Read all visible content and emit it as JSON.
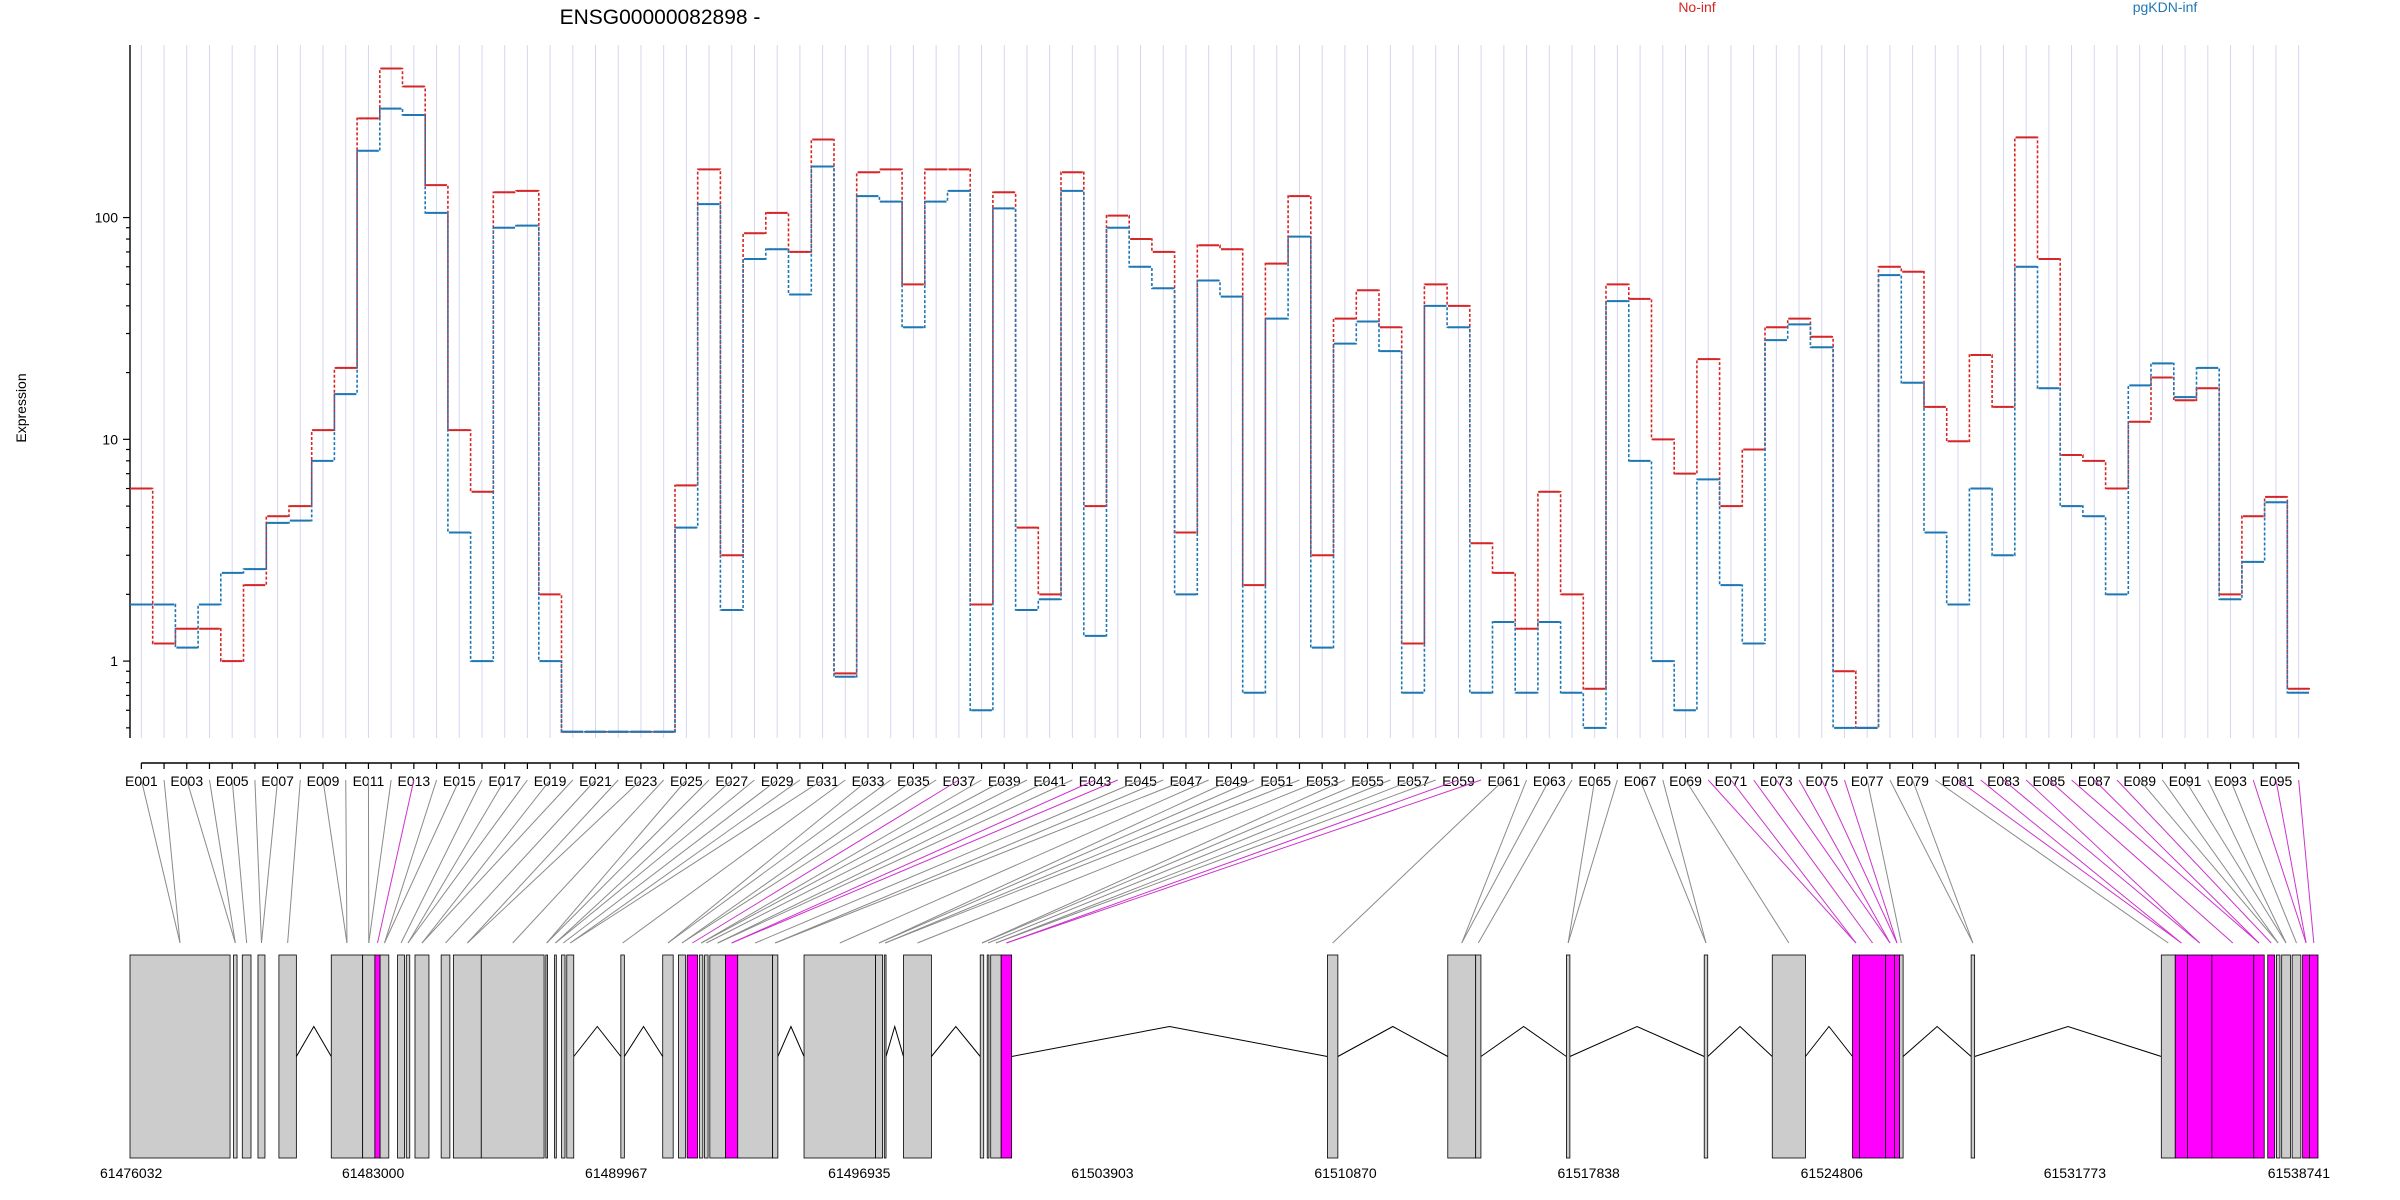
{
  "chart_data": {
    "type": "line",
    "title": "ENSG00000082898 -",
    "ylabel": "Expression",
    "yscale": "log",
    "ylim": [
      0.45,
      600
    ],
    "yticks": [
      "1",
      "10",
      "100"
    ],
    "grid": true,
    "legend_placement": "top-right",
    "colors": {
      "no_inf": "#d62728",
      "pgkdn_inf": "#1f77b4",
      "highlight": "#ff00ff",
      "exon": "#cccccc"
    },
    "x_labels_shown": [
      "E001",
      "E003",
      "E005",
      "E007",
      "E009",
      "E011",
      "E013",
      "E015",
      "E017",
      "E019",
      "E021",
      "E023",
      "E025",
      "E027",
      "E029",
      "E031",
      "E033",
      "E035",
      "E037",
      "E039",
      "E041",
      "E043",
      "E045",
      "E047",
      "E049",
      "E051",
      "E053",
      "E055",
      "E057",
      "E059",
      "E061",
      "E063",
      "E065",
      "E067",
      "E069",
      "E071",
      "E073",
      "E075",
      "E077",
      "E079",
      "E081",
      "E083",
      "E085",
      "E087",
      "E089",
      "E091",
      "E093",
      "E095"
    ],
    "series": [
      {
        "name": "No-inf",
        "color": "#d62728",
        "values": [
          6,
          1.2,
          1.4,
          1.4,
          1,
          2.2,
          4.5,
          5,
          11,
          21,
          280,
          470,
          390,
          140,
          11,
          5.8,
          130,
          132,
          2,
          0.48,
          0.48,
          0.48,
          0.48,
          0.48,
          6.2,
          165,
          3,
          85,
          105,
          70,
          225,
          0.88,
          160,
          165,
          50,
          165,
          165,
          1.8,
          130,
          4,
          2,
          160,
          5,
          102,
          80,
          70,
          3.8,
          75,
          72,
          2.2,
          62,
          125,
          3,
          35,
          47,
          32,
          1.2,
          50,
          40,
          3.4,
          2.5,
          1.4,
          5.8,
          2,
          0.75,
          50,
          43,
          10,
          7,
          23,
          5,
          9,
          32,
          35,
          29,
          0.9,
          0.5,
          60,
          57,
          14,
          9.8,
          24,
          14,
          230,
          65,
          8.5,
          8,
          6,
          12,
          19,
          15,
          17,
          2,
          4.5,
          5.5,
          0.75
        ]
      },
      {
        "name": "pgKDN-inf",
        "color": "#1f77b4",
        "values": [
          1.8,
          1.8,
          1.15,
          1.8,
          2.5,
          2.6,
          4.2,
          4.3,
          8,
          16,
          200,
          310,
          290,
          105,
          3.8,
          1,
          90,
          92,
          1,
          0.48,
          0.48,
          0.48,
          0.48,
          0.48,
          4,
          115,
          1.7,
          65,
          72,
          45,
          170,
          0.85,
          125,
          118,
          32,
          118,
          132,
          0.6,
          110,
          1.7,
          1.9,
          132,
          1.3,
          90,
          60,
          48,
          2,
          52,
          44,
          0.72,
          35,
          82,
          1.15,
          27,
          34,
          25,
          0.72,
          40,
          32,
          0.72,
          1.5,
          0.72,
          1.5,
          0.72,
          0.5,
          42,
          8,
          1,
          0.6,
          6.6,
          2.2,
          1.2,
          28,
          33,
          26,
          0.5,
          0.5,
          55,
          18,
          3.8,
          1.8,
          6,
          3,
          60,
          17,
          5,
          4.5,
          2,
          17.5,
          22,
          15.5,
          21,
          1.9,
          2.8,
          5.2,
          0.72
        ]
      }
    ],
    "coordinates": {
      "ticks": [
        "61476032",
        "61483000",
        "61489967",
        "61496935",
        "61503903",
        "61510870",
        "61517838",
        "61524806",
        "61531773",
        "61538741"
      ]
    }
  }
}
